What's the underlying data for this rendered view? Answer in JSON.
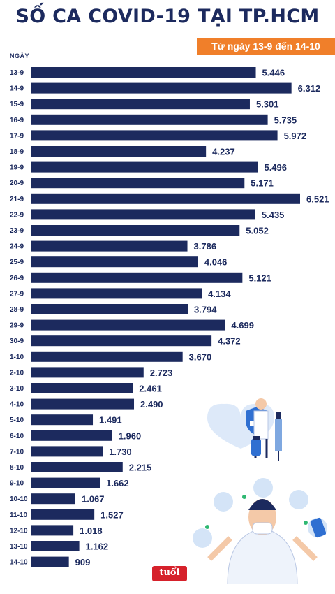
{
  "chart_data": {
    "type": "bar",
    "orientation": "horizontal",
    "title": "SỐ CA COVID-19 TẠI TP.HCM",
    "subtitle": "Từ ngày 13-9 đến 14-10",
    "ylabel": "NGÀY",
    "categories": [
      "13-9",
      "14-9",
      "15-9",
      "16-9",
      "17-9",
      "18-9",
      "19-9",
      "20-9",
      "21-9",
      "22-9",
      "23-9",
      "24-9",
      "25-9",
      "26-9",
      "27-9",
      "28-9",
      "29-9",
      "30-9",
      "1-10",
      "2-10",
      "3-10",
      "4-10",
      "5-10",
      "6-10",
      "7-10",
      "8-10",
      "9-10",
      "10-10",
      "11-10",
      "12-10",
      "13-10",
      "14-10"
    ],
    "values": [
      5446,
      6312,
      5301,
      5735,
      5972,
      4237,
      5496,
      5171,
      6521,
      5435,
      5052,
      3786,
      4046,
      5121,
      4134,
      3794,
      4699,
      4372,
      3670,
      2723,
      2461,
      2490,
      1491,
      1960,
      1730,
      2215,
      1662,
      1067,
      1527,
      1018,
      1162,
      909
    ],
    "value_labels": [
      "5.446",
      "6.312",
      "5.301",
      "5.735",
      "5.972",
      "4.237",
      "5.496",
      "5.171",
      "6.521",
      "5.435",
      "5.052",
      "3.786",
      "4.046",
      "5.121",
      "4.134",
      "3.794",
      "4.699",
      "4.372",
      "3.670",
      "2.723",
      "2.461",
      "2.490",
      "1.491",
      "1.960",
      "1.730",
      "2.215",
      "1.662",
      "1.067",
      "1.527",
      "1.018",
      "1.162",
      "909"
    ],
    "xlim": [
      0,
      6521
    ],
    "grid": false,
    "legend": "none",
    "bar_color": "#1c2a5e",
    "accent_color": "#f07f2a"
  },
  "logo_text": "tuổi trẻ"
}
